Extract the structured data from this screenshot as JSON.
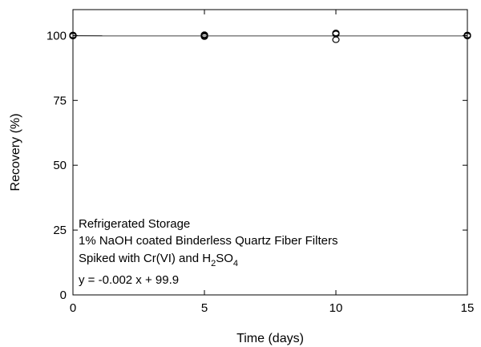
{
  "chart_data": {
    "type": "scatter",
    "xlabel": "Time (days)",
    "ylabel": "Recovery (%)",
    "xlim": [
      0,
      15
    ],
    "ylim": [
      0,
      110
    ],
    "xticks": [
      0,
      5,
      10,
      15
    ],
    "xtick_labels": [
      "0",
      "5",
      "10",
      "15"
    ],
    "yticks": [
      0,
      25,
      50,
      75,
      100
    ],
    "ytick_labels": [
      "0",
      "25",
      "50",
      "75",
      "100"
    ],
    "grid": false,
    "series": [
      {
        "marker": "open-circle",
        "x": [
          0,
          0,
          0,
          5,
          5,
          5,
          10,
          10,
          10,
          15,
          15,
          15
        ],
        "y": [
          100,
          99.8,
          100.2,
          100,
          100.3,
          99.6,
          101,
          100.6,
          98.4,
          100,
          99.8,
          100.2
        ]
      }
    ],
    "fit_line": {
      "slope": -0.002,
      "intercept": 99.9,
      "equation_prefix": "y = ",
      "equation_body": "-0.002 x + 99.9"
    },
    "annotation": {
      "line1": "Refrigerated Storage",
      "line2": "1% NaOH coated Binderless Quartz Fiber Filters",
      "line3_prefix": "Spiked with Cr(VI) and H",
      "line3_sub1": "2",
      "line3_mid": "SO",
      "line3_sub2": "4"
    },
    "colors": {
      "axis": "#000000",
      "marker": "#000000",
      "fit_line": "#000000"
    }
  }
}
